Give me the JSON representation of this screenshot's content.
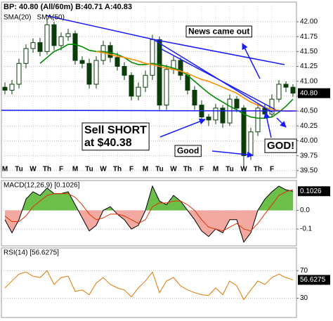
{
  "chart_data": [
    {
      "type": "candlestick",
      "title": "BP: 40.80 (All/60m)  B:40.71  A:40.83",
      "color": "#0a3d0a",
      "open": [
        40.9,
        40.85,
        40.95,
        41.3,
        41.55,
        41.65,
        41.5,
        41.95,
        41.6,
        41.75,
        41.8,
        41.35,
        41.3,
        40.95,
        41.35,
        41.6,
        41.4,
        41.25,
        41.1,
        40.75,
        40.9,
        41.1,
        41.7,
        40.6,
        41.2,
        41.35,
        41.1,
        40.85,
        40.6,
        40.4,
        40.35,
        40.55,
        40.3,
        40.7,
        40.55,
        39.75,
        40.15,
        40.55,
        40.45,
        40.7,
        40.95,
        40.9
      ],
      "high": [
        40.98,
        41.02,
        41.38,
        41.62,
        41.72,
        41.73,
        42.05,
        42.0,
        41.82,
        41.88,
        41.85,
        41.42,
        41.38,
        41.42,
        41.68,
        41.66,
        41.48,
        41.32,
        41.15,
        40.98,
        41.18,
        41.78,
        41.75,
        41.28,
        41.42,
        41.4,
        41.15,
        40.92,
        40.68,
        40.45,
        40.62,
        40.6,
        40.78,
        40.75,
        40.6,
        40.22,
        40.62,
        40.62,
        40.78,
        41.02,
        41.0,
        40.95
      ],
      "low": [
        40.78,
        40.78,
        40.88,
        41.22,
        41.48,
        41.42,
        41.45,
        41.52,
        41.52,
        41.68,
        41.28,
        41.22,
        40.88,
        40.88,
        41.28,
        41.32,
        41.18,
        41.02,
        40.68,
        40.68,
        40.82,
        41.02,
        40.52,
        40.52,
        41.12,
        41.02,
        40.78,
        40.52,
        40.32,
        40.25,
        40.28,
        40.22,
        40.25,
        40.48,
        39.55,
        39.68,
        40.08,
        40.38,
        40.4,
        40.65,
        40.82,
        40.74
      ],
      "close": [
        40.85,
        40.95,
        41.3,
        41.55,
        41.65,
        41.5,
        41.95,
        41.6,
        41.75,
        41.8,
        41.35,
        41.3,
        40.95,
        41.35,
        41.6,
        41.4,
        41.25,
        41.1,
        40.75,
        40.9,
        41.1,
        41.7,
        40.6,
        41.2,
        41.35,
        41.1,
        40.85,
        40.6,
        40.4,
        40.35,
        40.55,
        40.3,
        40.7,
        40.55,
        39.75,
        40.15,
        40.55,
        40.45,
        40.7,
        40.95,
        40.9,
        40.8
      ],
      "series": [
        {
          "name": "SMA(20)",
          "color": "#008a00",
          "values": [
            null,
            null,
            null,
            null,
            null,
            41.3,
            41.4,
            41.5,
            41.55,
            41.62,
            41.62,
            41.58,
            41.52,
            41.5,
            41.5,
            41.48,
            41.45,
            41.4,
            41.32,
            41.28,
            41.28,
            41.3,
            41.28,
            41.25,
            41.22,
            41.18,
            41.1,
            41.0,
            40.9,
            40.8,
            40.72,
            40.65,
            40.58,
            40.52,
            40.45,
            40.4,
            40.38,
            40.38,
            40.4,
            40.48,
            40.58,
            40.7
          ]
        },
        {
          "name": "SMA(50)",
          "color": "#ff8c00",
          "values": [
            null,
            null,
            null,
            null,
            null,
            null,
            null,
            null,
            null,
            null,
            null,
            null,
            null,
            41.5,
            41.48,
            41.45,
            41.42,
            41.4,
            41.37,
            41.34,
            41.3,
            41.28,
            41.25,
            41.22,
            41.2,
            41.17,
            41.13,
            41.08,
            41.03,
            41.0,
            40.95,
            40.9,
            40.85,
            40.8,
            40.72,
            40.65,
            40.6,
            40.56,
            40.53,
            40.51,
            40.5,
            40.5
          ]
        }
      ],
      "last_value": {
        "value": 40.8,
        "label": "40.80"
      },
      "xlim": [
        -0.5,
        41.5
      ],
      "xticks": [
        {
          "value": 0,
          "label": "M"
        },
        {
          "value": 2,
          "label": "Tu"
        },
        {
          "value": 4,
          "label": "W"
        },
        {
          "value": 6,
          "label": "Th"
        },
        {
          "value": 8,
          "label": "F"
        },
        {
          "value": 10,
          "label": "M"
        },
        {
          "value": 12,
          "label": "Tu"
        },
        {
          "value": 14,
          "label": "W"
        },
        {
          "value": 16,
          "label": "Th"
        },
        {
          "value": 18,
          "label": "F"
        },
        {
          "value": 20,
          "label": "M"
        },
        {
          "value": 22,
          "label": "Tu"
        },
        {
          "value": 24,
          "label": "W"
        },
        {
          "value": 26,
          "label": "Th"
        },
        {
          "value": 28,
          "label": "F"
        },
        {
          "value": 30,
          "label": "M"
        },
        {
          "value": 32,
          "label": "Tu"
        },
        {
          "value": 34,
          "label": "W"
        },
        {
          "value": 36,
          "label": "Th"
        },
        {
          "value": 38,
          "label": "F"
        }
      ],
      "ylim": [
        39.38,
        42.33
      ],
      "yticks": [
        {
          "value": 39.5,
          "label": "39.50"
        },
        {
          "value": 39.75,
          "label": "39.75"
        },
        {
          "value": 40.0,
          "label": "40.00"
        },
        {
          "value": 40.25,
          "label": "40.25"
        },
        {
          "value": 40.5,
          "label": "40.50"
        },
        {
          "value": 40.75,
          "label": "40.75"
        },
        {
          "value": 41.0,
          "label": "41.00"
        },
        {
          "value": 41.25,
          "label": "41.25"
        },
        {
          "value": 41.5,
          "label": "41.50"
        },
        {
          "value": 41.75,
          "label": "41.75"
        },
        {
          "value": 42.0,
          "label": "42.00"
        }
      ],
      "grid": true,
      "annotations": [
        [
          "News came out"
        ],
        [
          "Sell SHORT",
          "at $40.38"
        ],
        [
          "Good"
        ],
        [
          "GOD!"
        ]
      ]
    },
    {
      "type": "line",
      "title": "MACD(12,26,9) [0.1026]",
      "fill_colors": {
        "positive": "#6cbf4a",
        "negative": "#f4a9a0"
      },
      "series": [
        {
          "color": "#000000",
          "values": [
            -0.05,
            -0.12,
            -0.05,
            0.06,
            0.1,
            0.08,
            0.12,
            0.09,
            0.09,
            0.1,
            0.03,
            -0.04,
            -0.11,
            -0.08,
            0.0,
            0.02,
            -0.02,
            -0.05,
            -0.1,
            -0.08,
            0.0,
            0.13,
            0.05,
            0.03,
            0.08,
            0.05,
            0.0,
            -0.05,
            -0.11,
            -0.14,
            -0.1,
            -0.12,
            -0.05,
            -0.05,
            -0.17,
            -0.12,
            0.0,
            0.06,
            0.1,
            0.13,
            0.11,
            0.1026
          ]
        },
        {
          "color": "#e03000",
          "values": [
            -0.03,
            -0.06,
            -0.06,
            -0.03,
            0.02,
            0.05,
            0.08,
            0.09,
            0.09,
            0.09,
            0.07,
            0.03,
            -0.02,
            -0.05,
            -0.04,
            -0.02,
            -0.02,
            -0.03,
            -0.05,
            -0.07,
            -0.05,
            0.02,
            0.04,
            0.04,
            0.05,
            0.05,
            0.03,
            0.0,
            -0.05,
            -0.09,
            -0.1,
            -0.11,
            -0.09,
            -0.07,
            -0.1,
            -0.11,
            -0.07,
            -0.02,
            0.03,
            0.08,
            0.1,
            0.11
          ]
        }
      ],
      "last_value": 0.1026,
      "xlim": [
        -0.5,
        41.5
      ],
      "ylim": [
        -0.19,
        0.16
      ],
      "yticks": [
        {
          "value": 0,
          "label": "0.0"
        },
        -0.1
      ],
      "grid": true
    },
    {
      "type": "line",
      "title": "RSI(14) [56.6275]",
      "series": [
        {
          "color": "#e07800",
          "values": [
            45,
            55,
            65,
            68,
            62,
            60,
            70,
            50,
            60,
            62,
            40,
            42,
            35,
            52,
            60,
            50,
            45,
            42,
            32,
            45,
            55,
            68,
            38,
            55,
            60,
            48,
            42,
            38,
            35,
            34,
            45,
            35,
            55,
            48,
            28,
            42,
            55,
            50,
            60,
            65,
            60,
            56.6275
          ]
        }
      ],
      "last_value": 56.6275,
      "xlim": [
        -0.5,
        41.5
      ],
      "ylim": [
        2,
        103
      ],
      "yticks": [
        30,
        70
      ],
      "grid": true
    }
  ]
}
